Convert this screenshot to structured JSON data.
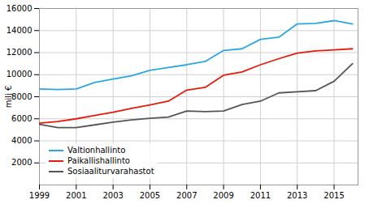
{
  "chart_data": {
    "type": "line",
    "ylabel": "milj €",
    "x": [
      1999,
      2000,
      2001,
      2002,
      2003,
      2004,
      2005,
      2006,
      2007,
      2008,
      2009,
      2010,
      2011,
      2012,
      2013,
      2014,
      2015,
      2016
    ],
    "series": [
      {
        "name": "Valtionhallinto",
        "color": "#29A8E0",
        "values": [
          8700,
          8650,
          8700,
          9300,
          9600,
          9900,
          10400,
          10650,
          10900,
          11200,
          12200,
          12350,
          13200,
          13400,
          14600,
          14650,
          14900,
          14600
        ]
      },
      {
        "name": "Paikallishallinto",
        "color": "#E8190A",
        "values": [
          5600,
          5750,
          6000,
          6300,
          6600,
          6950,
          7250,
          7600,
          8600,
          8850,
          9950,
          10250,
          10900,
          11450,
          11950,
          12150,
          12250,
          12350
        ]
      },
      {
        "name": "Sosiaaliturvarahastot",
        "color": "#555555",
        "values": [
          5500,
          5200,
          5200,
          5450,
          5700,
          5900,
          6050,
          6150,
          6700,
          6650,
          6700,
          7300,
          7600,
          8350,
          8450,
          8550,
          9400,
          11000
        ]
      }
    ],
    "xlim": [
      1999,
      2016.3
    ],
    "xticks": [
      1999,
      2001,
      2003,
      2005,
      2007,
      2009,
      2011,
      2013,
      2015
    ],
    "ylim": [
      0,
      16000
    ],
    "yticks": [
      2000,
      4000,
      6000,
      8000,
      10000,
      12000,
      14000,
      16000
    ],
    "grid": true,
    "legend": "lower left"
  }
}
